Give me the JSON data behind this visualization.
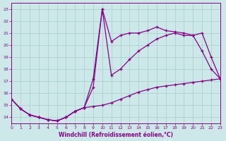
{
  "xlabel": "Windchill (Refroidissement éolien,°C)",
  "xlim": [
    0,
    23
  ],
  "ylim": [
    13.5,
    23.5
  ],
  "yticks": [
    14,
    15,
    16,
    17,
    18,
    19,
    20,
    21,
    22,
    23
  ],
  "xticks": [
    0,
    1,
    2,
    3,
    4,
    5,
    6,
    7,
    8,
    9,
    10,
    11,
    12,
    13,
    14,
    15,
    16,
    17,
    18,
    19,
    20,
    21,
    22,
    23
  ],
  "background_color": "#cce8e8",
  "grid_color": "#aacccc",
  "line_color": "#880088",
  "curve1_x": [
    0,
    1,
    2,
    3,
    4,
    5,
    6,
    7,
    8,
    9,
    10,
    11,
    12,
    13,
    14,
    15,
    16,
    17,
    18,
    19,
    20,
    21,
    22,
    23
  ],
  "curve1_y": [
    15.5,
    14.7,
    14.2,
    14.0,
    13.8,
    13.7,
    14.0,
    14.5,
    14.8,
    16.5,
    23.0,
    20.3,
    20.8,
    21.0,
    21.0,
    21.2,
    21.5,
    21.2,
    21.1,
    21.0,
    20.8,
    21.0,
    19.0,
    17.2
  ],
  "curve2_x": [
    0,
    1,
    2,
    3,
    4,
    5,
    6,
    7,
    8,
    9,
    10,
    11,
    12,
    13,
    14,
    15,
    16,
    17,
    18,
    19,
    20,
    21,
    22,
    23
  ],
  "curve2_y": [
    15.5,
    14.7,
    14.2,
    14.0,
    13.8,
    13.7,
    14.0,
    14.5,
    14.8,
    14.9,
    15.0,
    15.2,
    15.5,
    15.8,
    16.1,
    16.3,
    16.5,
    16.6,
    16.7,
    16.8,
    16.9,
    17.0,
    17.1,
    17.2
  ],
  "curve3_x": [
    0,
    1,
    2,
    3,
    4,
    5,
    6,
    7,
    8,
    9,
    10,
    11,
    12,
    13,
    14,
    15,
    16,
    17,
    18,
    19,
    20,
    21,
    22,
    23
  ],
  "curve3_y": [
    15.5,
    14.7,
    14.2,
    14.0,
    13.8,
    13.7,
    14.0,
    14.5,
    14.8,
    17.2,
    23.0,
    17.5,
    18.0,
    18.8,
    19.5,
    20.0,
    20.5,
    20.8,
    21.0,
    20.8,
    20.8,
    19.5,
    18.0,
    17.2
  ]
}
